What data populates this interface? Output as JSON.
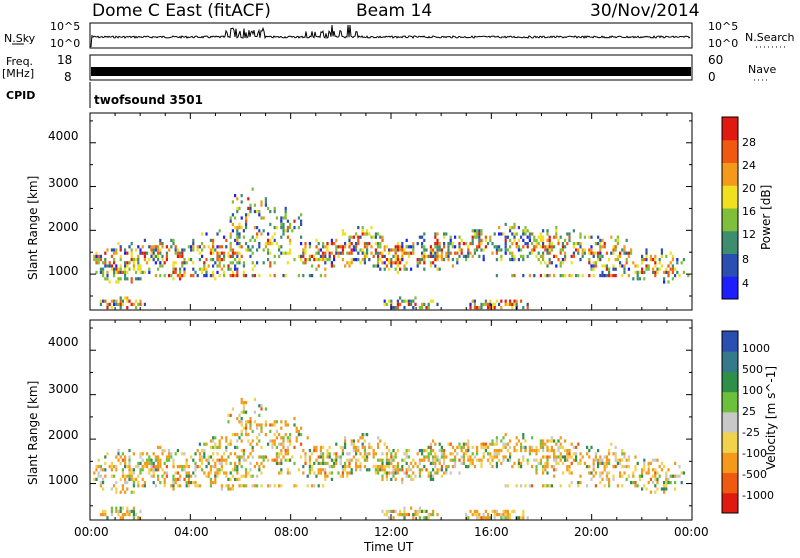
{
  "header": {
    "radar": "Dome C East (fitACF)",
    "beam": "Beam 14",
    "date": "30/Nov/2014"
  },
  "top_panels": {
    "nsky_label": "N.Sky",
    "nsky_ticks": [
      "10^5",
      "10^0"
    ],
    "nsearch_label": "N.Search",
    "freq_label_1": "Freq.",
    "freq_label_2": "[MHz]",
    "freq_ticks": [
      "18",
      "8"
    ],
    "nave_label": "Nave",
    "nave_ticks": [
      "60",
      "0"
    ],
    "cpid_label": "CPID",
    "cpid_value": "twofsound 3501"
  },
  "chart_data": [
    {
      "type": "heatmap",
      "name": "power",
      "ylabel": "Slant Range [km]",
      "xlabel": "",
      "x_tick_labels": [
        "00:00",
        "04:00",
        "08:00",
        "12:00",
        "16:00",
        "20:00",
        "00:00"
      ],
      "y_ticks": [
        "1000",
        "2000",
        "3000",
        "4000"
      ],
      "colorbar_label": "Power [dB]",
      "colorbar_ticks": [
        "4",
        "8",
        "12",
        "16",
        "20",
        "24",
        "28"
      ],
      "colorbar_colors": [
        "#1e1eff",
        "#2b4fb0",
        "#3d8d70",
        "#7fbf3a",
        "#f0e020",
        "#f39a1c",
        "#ef5a10",
        "#e01a10"
      ]
    },
    {
      "type": "heatmap",
      "name": "velocity",
      "ylabel": "Slant Range [km]",
      "xlabel": "Time UT",
      "x_tick_labels": [
        "00:00",
        "04:00",
        "08:00",
        "12:00",
        "16:00",
        "20:00",
        "00:00"
      ],
      "y_ticks": [
        "1000",
        "2000",
        "3000",
        "4000"
      ],
      "colorbar_label": "Velocity [m s^-1]",
      "colorbar_ticks": [
        "1000",
        "500",
        "100",
        "25",
        "-25",
        "-100",
        "-500",
        "-1000"
      ],
      "colorbar_colors": [
        "#2b4fb0",
        "#357a8a",
        "#2f8f4a",
        "#6cc13c",
        "#c8c8c8",
        "#f2d24a",
        "#f39a1c",
        "#ef5a10",
        "#e01a10"
      ]
    }
  ]
}
